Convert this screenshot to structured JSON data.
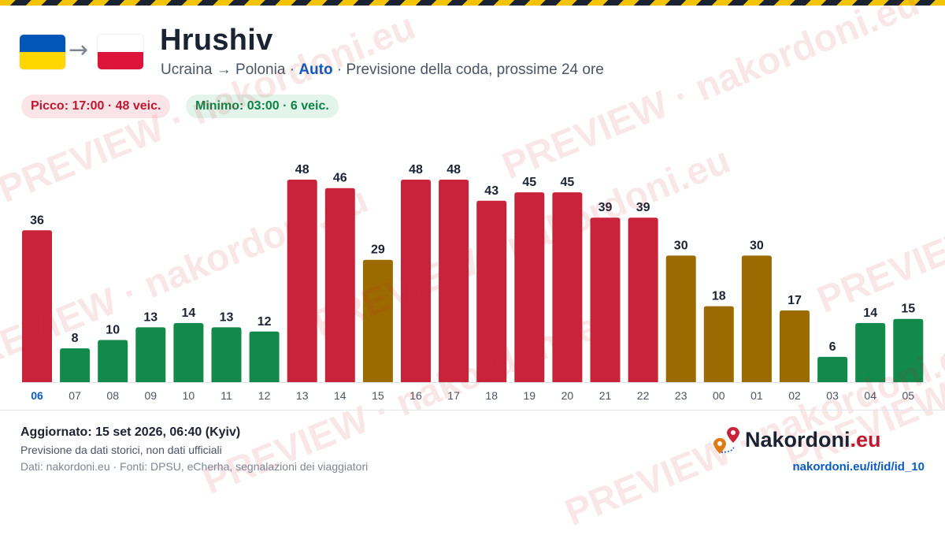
{
  "header": {
    "title": "Hrushiv",
    "route": "Ucraina → Polonia",
    "separator": " · ",
    "mode": "Auto",
    "description": "Previsione della coda, prossime 24 ore",
    "arrow": "→"
  },
  "flags": {
    "origin": [
      "#0057b7",
      "#ffd700"
    ],
    "destination": [
      "#ffffff",
      "#dc143c"
    ]
  },
  "badges": {
    "peak": "Picco: 17:00 · 48 veic.",
    "minimum": "Minimo: 03:00 · 6 veic."
  },
  "colors": {
    "high": "#c8233b",
    "medium": "#9b6a00",
    "low": "#13894b",
    "current_hour": "#0b5cc2",
    "axis_label": "#4a5566",
    "value_label": "#1b2333",
    "baseline": "#dfe3e8"
  },
  "watermark": "PREVIEW · nakordoni.eu",
  "chart_data": {
    "type": "bar",
    "categories": [
      "06",
      "07",
      "08",
      "09",
      "10",
      "11",
      "12",
      "13",
      "14",
      "15",
      "16",
      "17",
      "18",
      "19",
      "20",
      "21",
      "22",
      "23",
      "00",
      "01",
      "02",
      "03",
      "04",
      "05"
    ],
    "values": [
      36,
      8,
      10,
      13,
      14,
      13,
      12,
      48,
      46,
      29,
      48,
      48,
      43,
      45,
      45,
      39,
      39,
      30,
      18,
      30,
      17,
      6,
      14,
      15
    ],
    "levels": [
      "high",
      "low",
      "low",
      "low",
      "low",
      "low",
      "low",
      "high",
      "high",
      "medium",
      "high",
      "high",
      "high",
      "high",
      "high",
      "high",
      "high",
      "medium",
      "medium",
      "medium",
      "medium",
      "low",
      "low",
      "low"
    ],
    "highlighted_category": "06",
    "ylim": [
      0,
      48
    ],
    "title": "",
    "xlabel": "",
    "ylabel": "",
    "grid": false,
    "legend": "none"
  },
  "footer": {
    "updated": "Aggiornato: 15 set 2026, 06:40 (Kyiv)",
    "note": "Previsione da dati storici, non dati ufficiali",
    "sources": "Dati: nakordoni.eu · Fonti: DPSU, eCherha, segnalazioni dei viaggiatori",
    "brand_name": "Nakordoni",
    "brand_tld": ".eu",
    "url": "nakordoni.eu/it/id/id_10"
  }
}
